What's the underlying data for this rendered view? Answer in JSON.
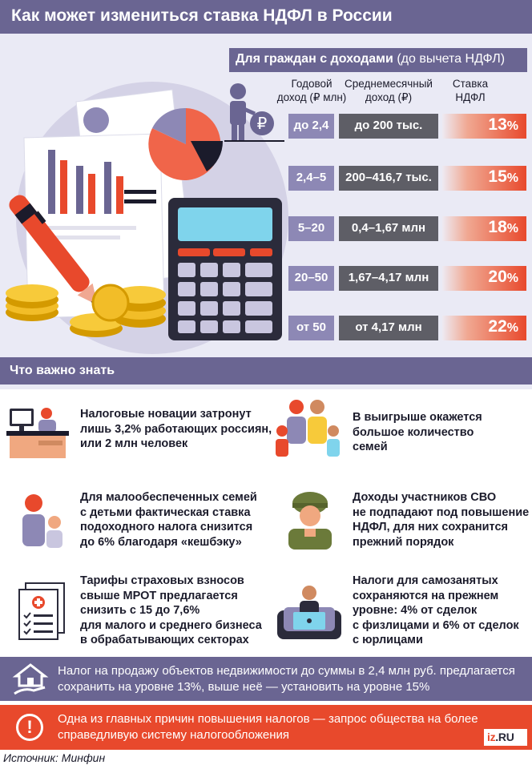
{
  "header": {
    "title": "Как может измениться ставка НДФЛ в России"
  },
  "table": {
    "group_title": "Для граждан с доходами",
    "group_subtitle": "(до вычета НДФЛ)",
    "col_income": [
      "Годовой",
      "доход (₽ млн)"
    ],
    "col_monthly": [
      "Среднемесячный",
      "доход (₽)"
    ],
    "col_rate": [
      "Ставка",
      "НДФЛ"
    ],
    "currency_symbol": "₽",
    "rows": [
      {
        "income": "до 2,4",
        "monthly": "до 200 тыс.",
        "rate_num": "13",
        "rate_pct": "%"
      },
      {
        "income": "2,4–5",
        "monthly": "200–416,7 тыс.",
        "rate_num": "15",
        "rate_pct": "%"
      },
      {
        "income": "5–20",
        "monthly": "0,4–1,67 млн",
        "rate_num": "18",
        "rate_pct": "%"
      },
      {
        "income": "20–50",
        "monthly": "1,67–4,17 млн",
        "rate_num": "20",
        "rate_pct": "%"
      },
      {
        "income": "от 50",
        "monthly": "от 4,17 млн",
        "rate_num": "22",
        "rate_pct": "%"
      }
    ]
  },
  "know": {
    "title": "Что важно знать",
    "facts": [
      {
        "lines": [
          "Налоговые новации затронут",
          "лишь 3,2% работающих россиян,",
          "или 2 млн человек"
        ],
        "icon": "office-worker-icon"
      },
      {
        "lines": [
          "В выигрыше окажется",
          "большое количество",
          "семей"
        ],
        "icon": "family-icon"
      },
      {
        "lines": [
          "Для малообеспеченных семей",
          "с детьми фактическая ставка",
          "подоходного налога снизится",
          "до 6% благодаря «кешбэку»"
        ],
        "icon": "mother-child-icon"
      },
      {
        "lines": [
          "Доходы участников СВО",
          "не подпадают под повышение",
          "НДФЛ, для них сохранится",
          "прежний порядок"
        ],
        "icon": "soldier-icon"
      },
      {
        "lines": [
          "Тарифы страховых взносов",
          "свыше МРОТ предлагается",
          "снизить с 15 до 7,6%",
          "для малого и среднего бизнеса",
          "в обрабатывающих секторах"
        ],
        "icon": "documents-icon"
      },
      {
        "lines": [
          "Налоги для самозанятых",
          "сохраняются на прежнем",
          "уровне: 4% от сделок",
          "с физлицами и 6% от сделок",
          "с юрлицами"
        ],
        "icon": "freelancer-laptop-icon"
      }
    ]
  },
  "banner_property": {
    "lines": [
      "Налог на продажу объектов недвижимости до суммы в 2,4 млн руб. предлагается",
      "сохранить на уровне 13%, выше неё — установить на уровне 15%"
    ],
    "icon": "house-hand-icon"
  },
  "banner_reason": {
    "lines": [
      "Одна из главных причин повышения налогов — запрос общества на более",
      "справедливую систему налогообложения"
    ],
    "icon": "exclamation-icon",
    "mark": "!"
  },
  "logo": {
    "iz": "iz",
    "ru": ".RU"
  },
  "source": "Источник: Минфин",
  "colors": {
    "purple": "#6a6592",
    "light_purple": "#8d88b5",
    "dark_gray": "#5e5e66",
    "red": "#e8492c",
    "bg": "#eaeaf5"
  }
}
